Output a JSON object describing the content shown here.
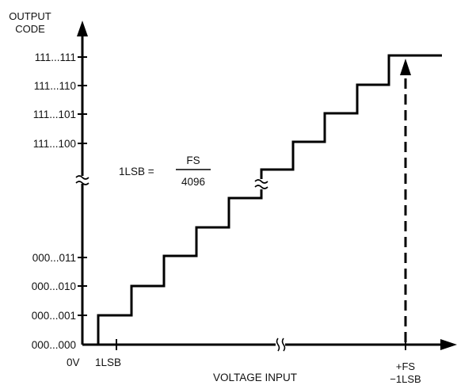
{
  "y_axis": {
    "title_line1": "OUTPUT",
    "title_line2": "CODE",
    "codes_top": [
      "111...111",
      "111...110",
      "111...101",
      "111...100"
    ],
    "codes_bottom": [
      "000...011",
      "000...010",
      "000...001",
      "000...000"
    ]
  },
  "x_axis": {
    "origin_label": "0V",
    "lsb_tick_label": "1LSB",
    "title": "VOLTAGE INPUT",
    "fs_label_line1": "+FS",
    "fs_label_line2": "−1LSB"
  },
  "formula": {
    "lhs": "1LSB =",
    "numerator": "FS",
    "denominator": "4096"
  },
  "chart_data": {
    "type": "line",
    "description_kind": "ADC staircase transfer function",
    "steps_lower": [
      "000...000",
      "000...001",
      "000...010",
      "000...011"
    ],
    "steps_upper": [
      "111...100",
      "111...101",
      "111...110",
      "111...111"
    ],
    "axis_breaks": [
      "y-axis",
      "x-axis",
      "staircase"
    ],
    "markers": [
      "1LSB",
      "+FS −1LSB"
    ]
  }
}
